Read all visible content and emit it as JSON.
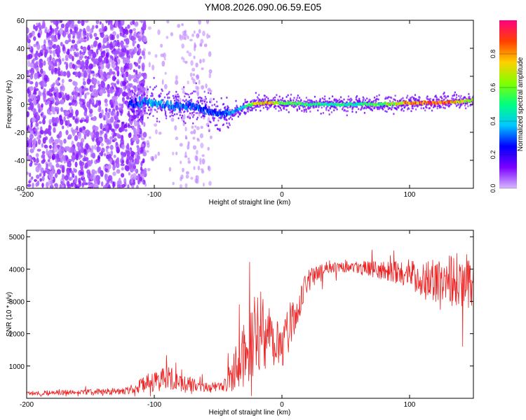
{
  "title": "YM08.2026.090.06.59.E05",
  "chart_data": [
    {
      "type": "heatmap",
      "title": "YM08.2026.090.06.59.E05",
      "xlabel": "Height of straight line (km)",
      "ylabel": "Frequency (Hz)",
      "xlim": [
        -200,
        150
      ],
      "ylim": [
        -60,
        60
      ],
      "xticks": [
        -200,
        -100,
        0,
        100
      ],
      "yticks": [
        60,
        40,
        20,
        0,
        -20,
        -40,
        -60
      ],
      "colorbar": {
        "label": "Normalized spectral amplitude",
        "range": [
          0,
          1
        ],
        "ticks": [
          0.0,
          0.2,
          0.4,
          0.6,
          0.8
        ],
        "colormap": [
          "#d8b8ff",
          "#7a00ff",
          "#0000ff",
          "#00c8ff",
          "#00ff80",
          "#80ff00",
          "#ffd000",
          "#ff4000",
          "#ff0080"
        ]
      },
      "ridge": {
        "x": [
          -120,
          -110,
          -100,
          -90,
          -80,
          -70,
          -60,
          -50,
          -40,
          -30,
          -20,
          -10,
          0,
          20,
          40,
          60,
          80,
          100,
          120,
          140,
          150
        ],
        "freq": [
          0,
          1,
          1,
          0,
          -1,
          -2,
          -4,
          -7,
          -6,
          -2,
          1,
          1,
          1,
          0,
          0,
          0,
          0,
          1,
          1,
          2,
          3
        ],
        "amplitude": [
          0.25,
          0.35,
          0.4,
          0.35,
          0.35,
          0.3,
          0.3,
          0.3,
          0.35,
          0.45,
          0.75,
          0.8,
          0.6,
          0.55,
          0.5,
          0.5,
          0.6,
          0.85,
          0.95,
          0.8,
          0.6
        ]
      },
      "noise_region_km": [
        -200,
        -115
      ]
    },
    {
      "type": "line",
      "xlabel": "Height of straight line (km)",
      "ylabel": "SNR (10 * v/v)",
      "xlim": [
        -200,
        150
      ],
      "ylim": [
        0,
        5200
      ],
      "xticks": [
        -200,
        -100,
        0,
        100
      ],
      "yticks": [
        1000,
        2000,
        3000,
        4000,
        5000
      ],
      "series": [
        {
          "name": "SNR",
          "color": "#ee2222",
          "x": [
            -200,
            -180,
            -160,
            -140,
            -120,
            -110,
            -100,
            -90,
            -80,
            -70,
            -60,
            -50,
            -45,
            -40,
            -35,
            -30,
            -25,
            -20,
            -15,
            -10,
            -5,
            0,
            5,
            10,
            15,
            20,
            30,
            40,
            50,
            60,
            70,
            80,
            90,
            100,
            110,
            120,
            130,
            140,
            150
          ],
          "mean": [
            150,
            170,
            180,
            200,
            250,
            400,
            550,
            600,
            500,
            420,
            350,
            300,
            400,
            700,
            1100,
            1500,
            1700,
            2000,
            2300,
            2000,
            1800,
            1700,
            2100,
            2600,
            3100,
            3600,
            3950,
            4100,
            4100,
            4050,
            4000,
            3950,
            3900,
            3850,
            3700,
            3600,
            3700,
            3650,
            3600
          ],
          "spread": [
            80,
            80,
            90,
            100,
            120,
            250,
            350,
            400,
            300,
            200,
            180,
            200,
            300,
            500,
            800,
            1000,
            1200,
            1300,
            1400,
            1200,
            1000,
            800,
            700,
            600,
            450,
            350,
            250,
            200,
            200,
            220,
            250,
            300,
            350,
            450,
            600,
            700,
            800,
            900,
            800
          ]
        }
      ]
    }
  ]
}
